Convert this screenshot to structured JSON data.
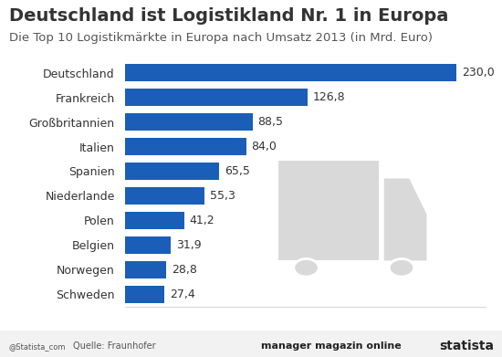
{
  "chart_data": {
    "type": "bar",
    "orientation": "horizontal",
    "title": "Deutschland ist Logistikland Nr. 1 in Europa",
    "subtitle": "Die Top 10 Logistikmärkte in Europa nach Umsatz 2013 (in Mrd. Euro)",
    "categories": [
      "Deutschland",
      "Frankreich",
      "Großbritannien",
      "Italien",
      "Spanien",
      "Niederlande",
      "Polen",
      "Belgien",
      "Norwegen",
      "Schweden"
    ],
    "values": [
      230.0,
      126.8,
      88.5,
      84.0,
      65.5,
      55.3,
      41.2,
      31.9,
      28.8,
      27.4
    ],
    "value_labels": [
      "230,0",
      "126,8",
      "88,5",
      "84,0",
      "65,5",
      "55,3",
      "41,2",
      "31,9",
      "28,8",
      "27,4"
    ],
    "data_labels": true,
    "color": "#1b5eb8",
    "xlim": [
      0,
      250
    ],
    "grid": false,
    "tick_labels": "y",
    "source": "Quelle: Fraunhofer",
    "annotations": [
      "@Statista_com",
      "manager magazin online",
      "statista"
    ]
  }
}
